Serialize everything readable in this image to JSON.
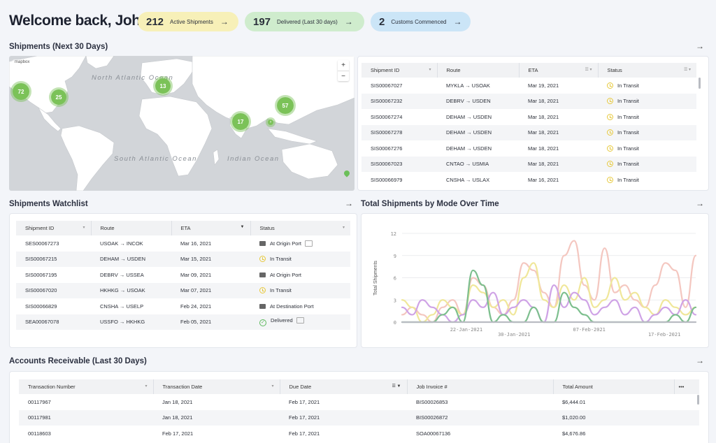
{
  "header": {
    "welcome": "Welcome back, John",
    "pills": [
      {
        "num": "212",
        "label": "Active Shipments"
      },
      {
        "num": "197",
        "label": "Delivered (Last 30 days)"
      },
      {
        "num": "2",
        "label": "Customs Commenced"
      }
    ]
  },
  "sections": {
    "shipments_map": "Shipments (Next 30 Days)",
    "watchlist": "Shipments Watchlist",
    "chart": "Total Shipments by Mode Over Time",
    "receivable": "Accounts Receivable (Last 30 Days)"
  },
  "map": {
    "oceans": [
      "North Atlantic Ocean",
      "South Atlantic Ocean",
      "Indian Ocean"
    ],
    "clusters": [
      "72",
      "25",
      "13",
      "57",
      "17"
    ],
    "zoom_in": "+",
    "zoom_out": "−",
    "logo": "mapbox"
  },
  "shipments": {
    "columns": [
      "Shipment ID",
      "Route",
      "ETA",
      "Status"
    ],
    "rows": [
      [
        "SIS00067027",
        "MYKLA → USOAK",
        "Mar 19, 2021",
        "In Transit"
      ],
      [
        "SIS00067232",
        "DEBRV → USDEN",
        "Mar 18, 2021",
        "In Transit"
      ],
      [
        "SIS00067274",
        "DEHAM → USDEN",
        "Mar 18, 2021",
        "In Transit"
      ],
      [
        "SIS00067278",
        "DEHAM → USDEN",
        "Mar 18, 2021",
        "In Transit"
      ],
      [
        "SIS00067276",
        "DEHAM → USDEN",
        "Mar 18, 2021",
        "In Transit"
      ],
      [
        "SIS00067023",
        "CNTAO → USMIA",
        "Mar 18, 2021",
        "In Transit"
      ],
      [
        "SIS00066979",
        "CNSHA → USLAX",
        "Mar 16, 2021",
        "In Transit"
      ]
    ]
  },
  "watchlist": {
    "columns": [
      "Shipment ID",
      "Route",
      "ETA",
      "Status"
    ],
    "rows": [
      [
        "SES00067273",
        "USOAK → INCOK",
        "Mar 16, 2021",
        "At Origin Port",
        "port"
      ],
      [
        "SIS00067215",
        "DEHAM → USDEN",
        "Mar 15, 2021",
        "In Transit",
        "clock"
      ],
      [
        "SIS00067195",
        "DEBRV → USSEA",
        "Mar 09, 2021",
        "At Origin Port",
        "port"
      ],
      [
        "SIS00067020",
        "HKHKG → USOAK",
        "Mar 07, 2021",
        "In Transit",
        "clock"
      ],
      [
        "SIS00066829",
        "CNSHA → USELP",
        "Feb 24, 2021",
        "At Destination Port",
        "port"
      ],
      [
        "SEA00067078",
        "USSFO → HKHKG",
        "Feb 05, 2021",
        "Delivered",
        "check"
      ]
    ]
  },
  "receivable": {
    "columns": [
      "Transaction Number",
      "Transaction Date",
      "Due Date",
      "Job Invoice #",
      "Total Amount"
    ],
    "more": "•••",
    "rows": [
      [
        "00117967",
        "Jan 18, 2021",
        "Feb 17, 2021",
        "BIS00026853",
        "$6,444.01"
      ],
      [
        "00117981",
        "Jan 18, 2021",
        "Feb 17, 2021",
        "BIS00026872",
        "$1,020.00"
      ],
      [
        "00118603",
        "Feb 17, 2021",
        "Feb 17, 2021",
        "SOA00067136",
        "$4,676.86"
      ]
    ]
  },
  "chart_data": {
    "type": "line",
    "title": "Total Shipments by Mode Over Time",
    "ylabel": "Total Shipments",
    "xlabel": "",
    "ylim": [
      0,
      12
    ],
    "yticks": [
      0,
      3,
      6,
      9,
      12
    ],
    "xticks": [
      "22-Jan-2021",
      "30-Jan-2021",
      "07-Feb-2021",
      "17-Feb-2021"
    ],
    "x": [
      0,
      1,
      2,
      3,
      4,
      5,
      6,
      7,
      8,
      9,
      10,
      11,
      12,
      13,
      14,
      15,
      16,
      17,
      18,
      19,
      20,
      21,
      22,
      23,
      24,
      25,
      26,
      27,
      28,
      29
    ],
    "series": [
      {
        "name": "Pink",
        "color": "#f4c7c0",
        "values": [
          1,
          2,
          1,
          0,
          2,
          3,
          1,
          6,
          5,
          2,
          1,
          3,
          8,
          7,
          4,
          2,
          9,
          11,
          5,
          3,
          10,
          4,
          5,
          3,
          2,
          5,
          8,
          7,
          2,
          9
        ]
      },
      {
        "name": "Yellow",
        "color": "#f0e79a",
        "values": [
          3,
          2,
          0,
          1,
          3,
          2,
          1,
          5,
          4,
          2,
          3,
          1,
          6,
          8,
          3,
          2,
          5,
          3,
          6,
          2,
          3,
          6,
          3,
          4,
          2,
          1,
          3,
          2,
          1,
          2
        ]
      },
      {
        "name": "Purple",
        "color": "#cfa3e6",
        "values": [
          2,
          1,
          3,
          2,
          1,
          0,
          1,
          3,
          2,
          4,
          1,
          2,
          3,
          2,
          0,
          5,
          2,
          4,
          3,
          1,
          2,
          3,
          1,
          2,
          0,
          1,
          2,
          1,
          3,
          1
        ]
      },
      {
        "name": "Green",
        "color": "#7dbf8e",
        "values": [
          0,
          0,
          0,
          0,
          1,
          2,
          0,
          7,
          5,
          0,
          1,
          0,
          0,
          2,
          0,
          0,
          4,
          2,
          1,
          0,
          0,
          0,
          0,
          0,
          0,
          0,
          0,
          1,
          0,
          2
        ]
      },
      {
        "name": "Grey",
        "color": "#b9bcc2",
        "values": [
          0,
          0,
          0,
          0,
          0,
          0,
          0,
          0,
          0,
          0,
          0,
          0,
          0,
          0,
          0,
          0,
          0,
          0,
          0,
          0,
          0,
          0,
          0,
          0,
          0,
          0,
          0,
          0,
          0,
          0
        ]
      }
    ]
  },
  "colors": {
    "accent_green": "#7bc258",
    "clock": "#e7c93c"
  }
}
